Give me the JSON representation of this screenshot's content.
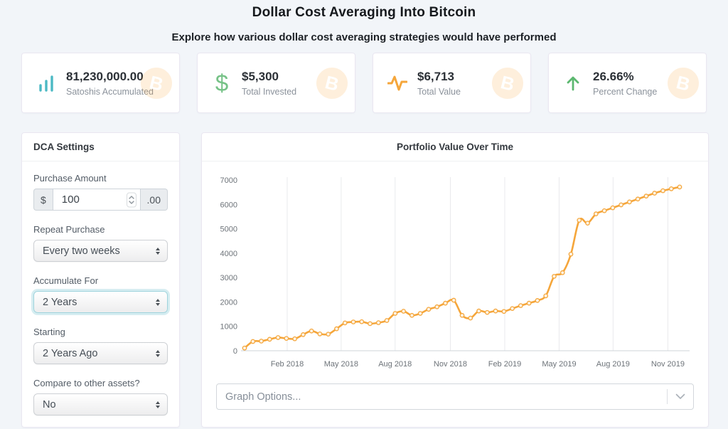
{
  "page": {
    "title": "Dollar Cost Averaging Into Bitcoin",
    "subtitle": "Explore how various dollar cost averaging strategies would have performed"
  },
  "stats": [
    {
      "icon": "bar-chart-icon",
      "value": "81,230,000.00",
      "label": "Satoshis Accumulated",
      "icon_color": "#4cb9c4"
    },
    {
      "icon": "dollar-icon",
      "value": "$5,300",
      "label": "Total Invested",
      "icon_color": "#76c287"
    },
    {
      "icon": "activity-icon",
      "value": "$6,713",
      "label": "Total Value",
      "icon_color": "#f5a63b"
    },
    {
      "icon": "arrow-up-icon",
      "value": "26.66%",
      "label": "Percent Change",
      "icon_color": "#5cb870"
    }
  ],
  "watermark": {
    "icon": "bitcoin-watermark",
    "glyph": "B",
    "color": "#f7a63b"
  },
  "settings": {
    "header": "DCA Settings",
    "purchase_amount": {
      "label": "Purchase Amount",
      "prefix": "$",
      "value": "100",
      "suffix": ".00"
    },
    "repeat_purchase": {
      "label": "Repeat Purchase",
      "value": "Every two weeks"
    },
    "accumulate_for": {
      "label": "Accumulate For",
      "value": "2 Years"
    },
    "starting": {
      "label": "Starting",
      "value": "2 Years Ago"
    },
    "compare": {
      "label": "Compare to other assets?",
      "value": "No"
    }
  },
  "chart_panel": {
    "title": "Portfolio Value Over Time",
    "graph_options_placeholder": "Graph Options..."
  },
  "chart_data": {
    "type": "line",
    "title": "Portfolio Value Over Time",
    "xlabel": "",
    "ylabel": "",
    "ylim": [
      0,
      7000
    ],
    "y_ticks": [
      0,
      1000,
      2000,
      3000,
      4000,
      5000,
      6000,
      7000
    ],
    "grid": "vertical-only",
    "legend": "none",
    "line_color": "#f5a63b",
    "marker_fill": "#fdf3e3",
    "x_ticks": [
      {
        "label": "Feb 2018",
        "pos": 0.098
      },
      {
        "label": "May 2018",
        "pos": 0.222
      },
      {
        "label": "Aug 2018",
        "pos": 0.346
      },
      {
        "label": "Nov 2018",
        "pos": 0.473
      },
      {
        "label": "Feb 2019",
        "pos": 0.598
      },
      {
        "label": "May 2019",
        "pos": 0.723
      },
      {
        "label": "Aug 2019",
        "pos": 0.847
      },
      {
        "label": "Nov 2019",
        "pos": 0.973
      }
    ],
    "series": [
      {
        "name": "Portfolio Value",
        "values": [
          110,
          380,
          395,
          470,
          540,
          505,
          490,
          660,
          810,
          690,
          680,
          900,
          1140,
          1180,
          1190,
          1110,
          1150,
          1240,
          1530,
          1620,
          1450,
          1530,
          1700,
          1800,
          1950,
          2070,
          1450,
          1340,
          1630,
          1570,
          1630,
          1610,
          1730,
          1850,
          1950,
          2060,
          2250,
          3050,
          3200,
          3960,
          5350,
          5230,
          5610,
          5740,
          5860,
          5980,
          6100,
          6220,
          6340,
          6460,
          6560,
          6640,
          6713
        ]
      }
    ]
  }
}
